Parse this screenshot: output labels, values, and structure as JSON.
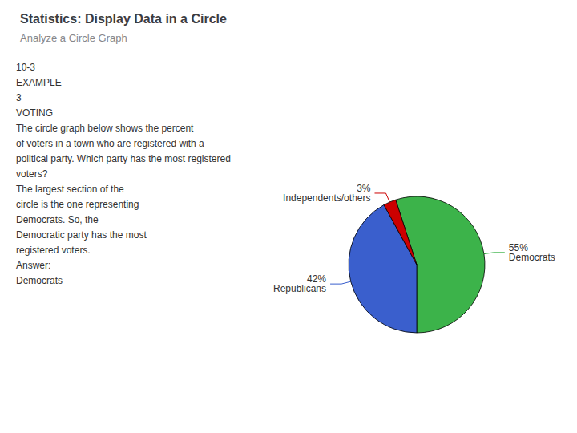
{
  "chart_data": {
    "type": "pie",
    "title": "Statistics: Display Data in a Circle",
    "subtitle": "Analyze a Circle Graph",
    "categories": [
      "Democrats",
      "Republicans",
      "Independents/others"
    ],
    "values": [
      55,
      42,
      3
    ],
    "value_labels": [
      "55%",
      "42%",
      "3%"
    ],
    "colors": [
      "#3cb34a",
      "#3a5fcd",
      "#cc0000"
    ],
    "data_labels": true,
    "legend": false,
    "annotations": [
      "10-3",
      "EXAMPLE",
      "3",
      "VOTING",
      "The circle graph below shows the percent",
      "of voters in a town who are registered with a",
      "political party. Which party has the most registered",
      "voters?",
      "The largest section of the",
      "circle is the one representing",
      "Democrats. So, the",
      "Democratic party has the most",
      "registered voters.",
      "Answer:",
      "Democrats"
    ]
  }
}
